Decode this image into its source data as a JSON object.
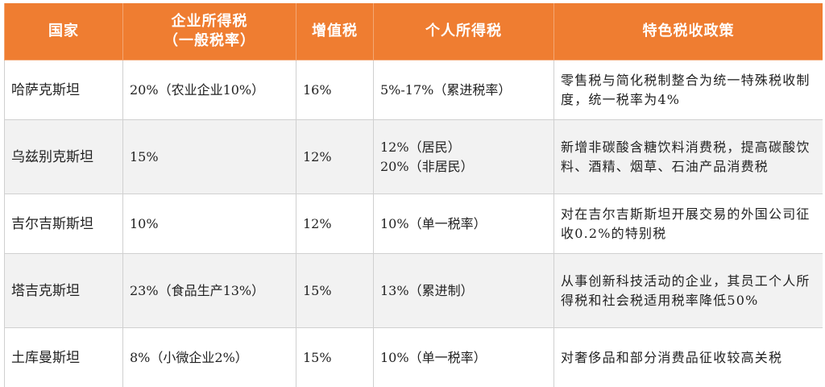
{
  "table": {
    "headers": {
      "country": "国家",
      "cit_line1": "企业所得税",
      "cit_line2": "（一般税率）",
      "vat": "增值税",
      "pit": "个人所得税",
      "policy": "特色税收政策"
    },
    "rows": [
      {
        "country": "哈萨克斯坦",
        "cit": "20%（农业企业10%）",
        "vat": "16%",
        "pit_line1": "5%-17%（累进税率）",
        "pit_line2": "",
        "policy": "零售税与简化税制整合为统一特殊税收制度，统一税率为4%"
      },
      {
        "country": "乌兹别克斯坦",
        "cit": "15%",
        "vat": "12%",
        "pit_line1": "12%（居民）",
        "pit_line2": "20%（非居民）",
        "policy": "新增非碳酸含糖饮料消费税，提高碳酸饮料、酒精、烟草、石油产品消费税"
      },
      {
        "country": "吉尔吉斯斯坦",
        "cit": "10%",
        "vat": "12%",
        "pit_line1": "10%（单一税率）",
        "pit_line2": "",
        "policy": "对在吉尔吉斯斯坦开展交易的外国公司征收0.2%的特别税"
      },
      {
        "country": "塔吉克斯坦",
        "cit": "23%（食品生产13%）",
        "vat": "15%",
        "pit_line1": "13%（累进制）",
        "pit_line2": "",
        "policy": "从事创新科技活动的企业，其员工个人所得税和社会税适用税率降低50%"
      },
      {
        "country": "土库曼斯坦",
        "cit": "8%（小微企业2%）",
        "vat": "15%",
        "pit_line1": "10%（单一税率）",
        "pit_line2": "",
        "policy": "对奢侈品和部分消费品征收较高关税"
      }
    ]
  }
}
